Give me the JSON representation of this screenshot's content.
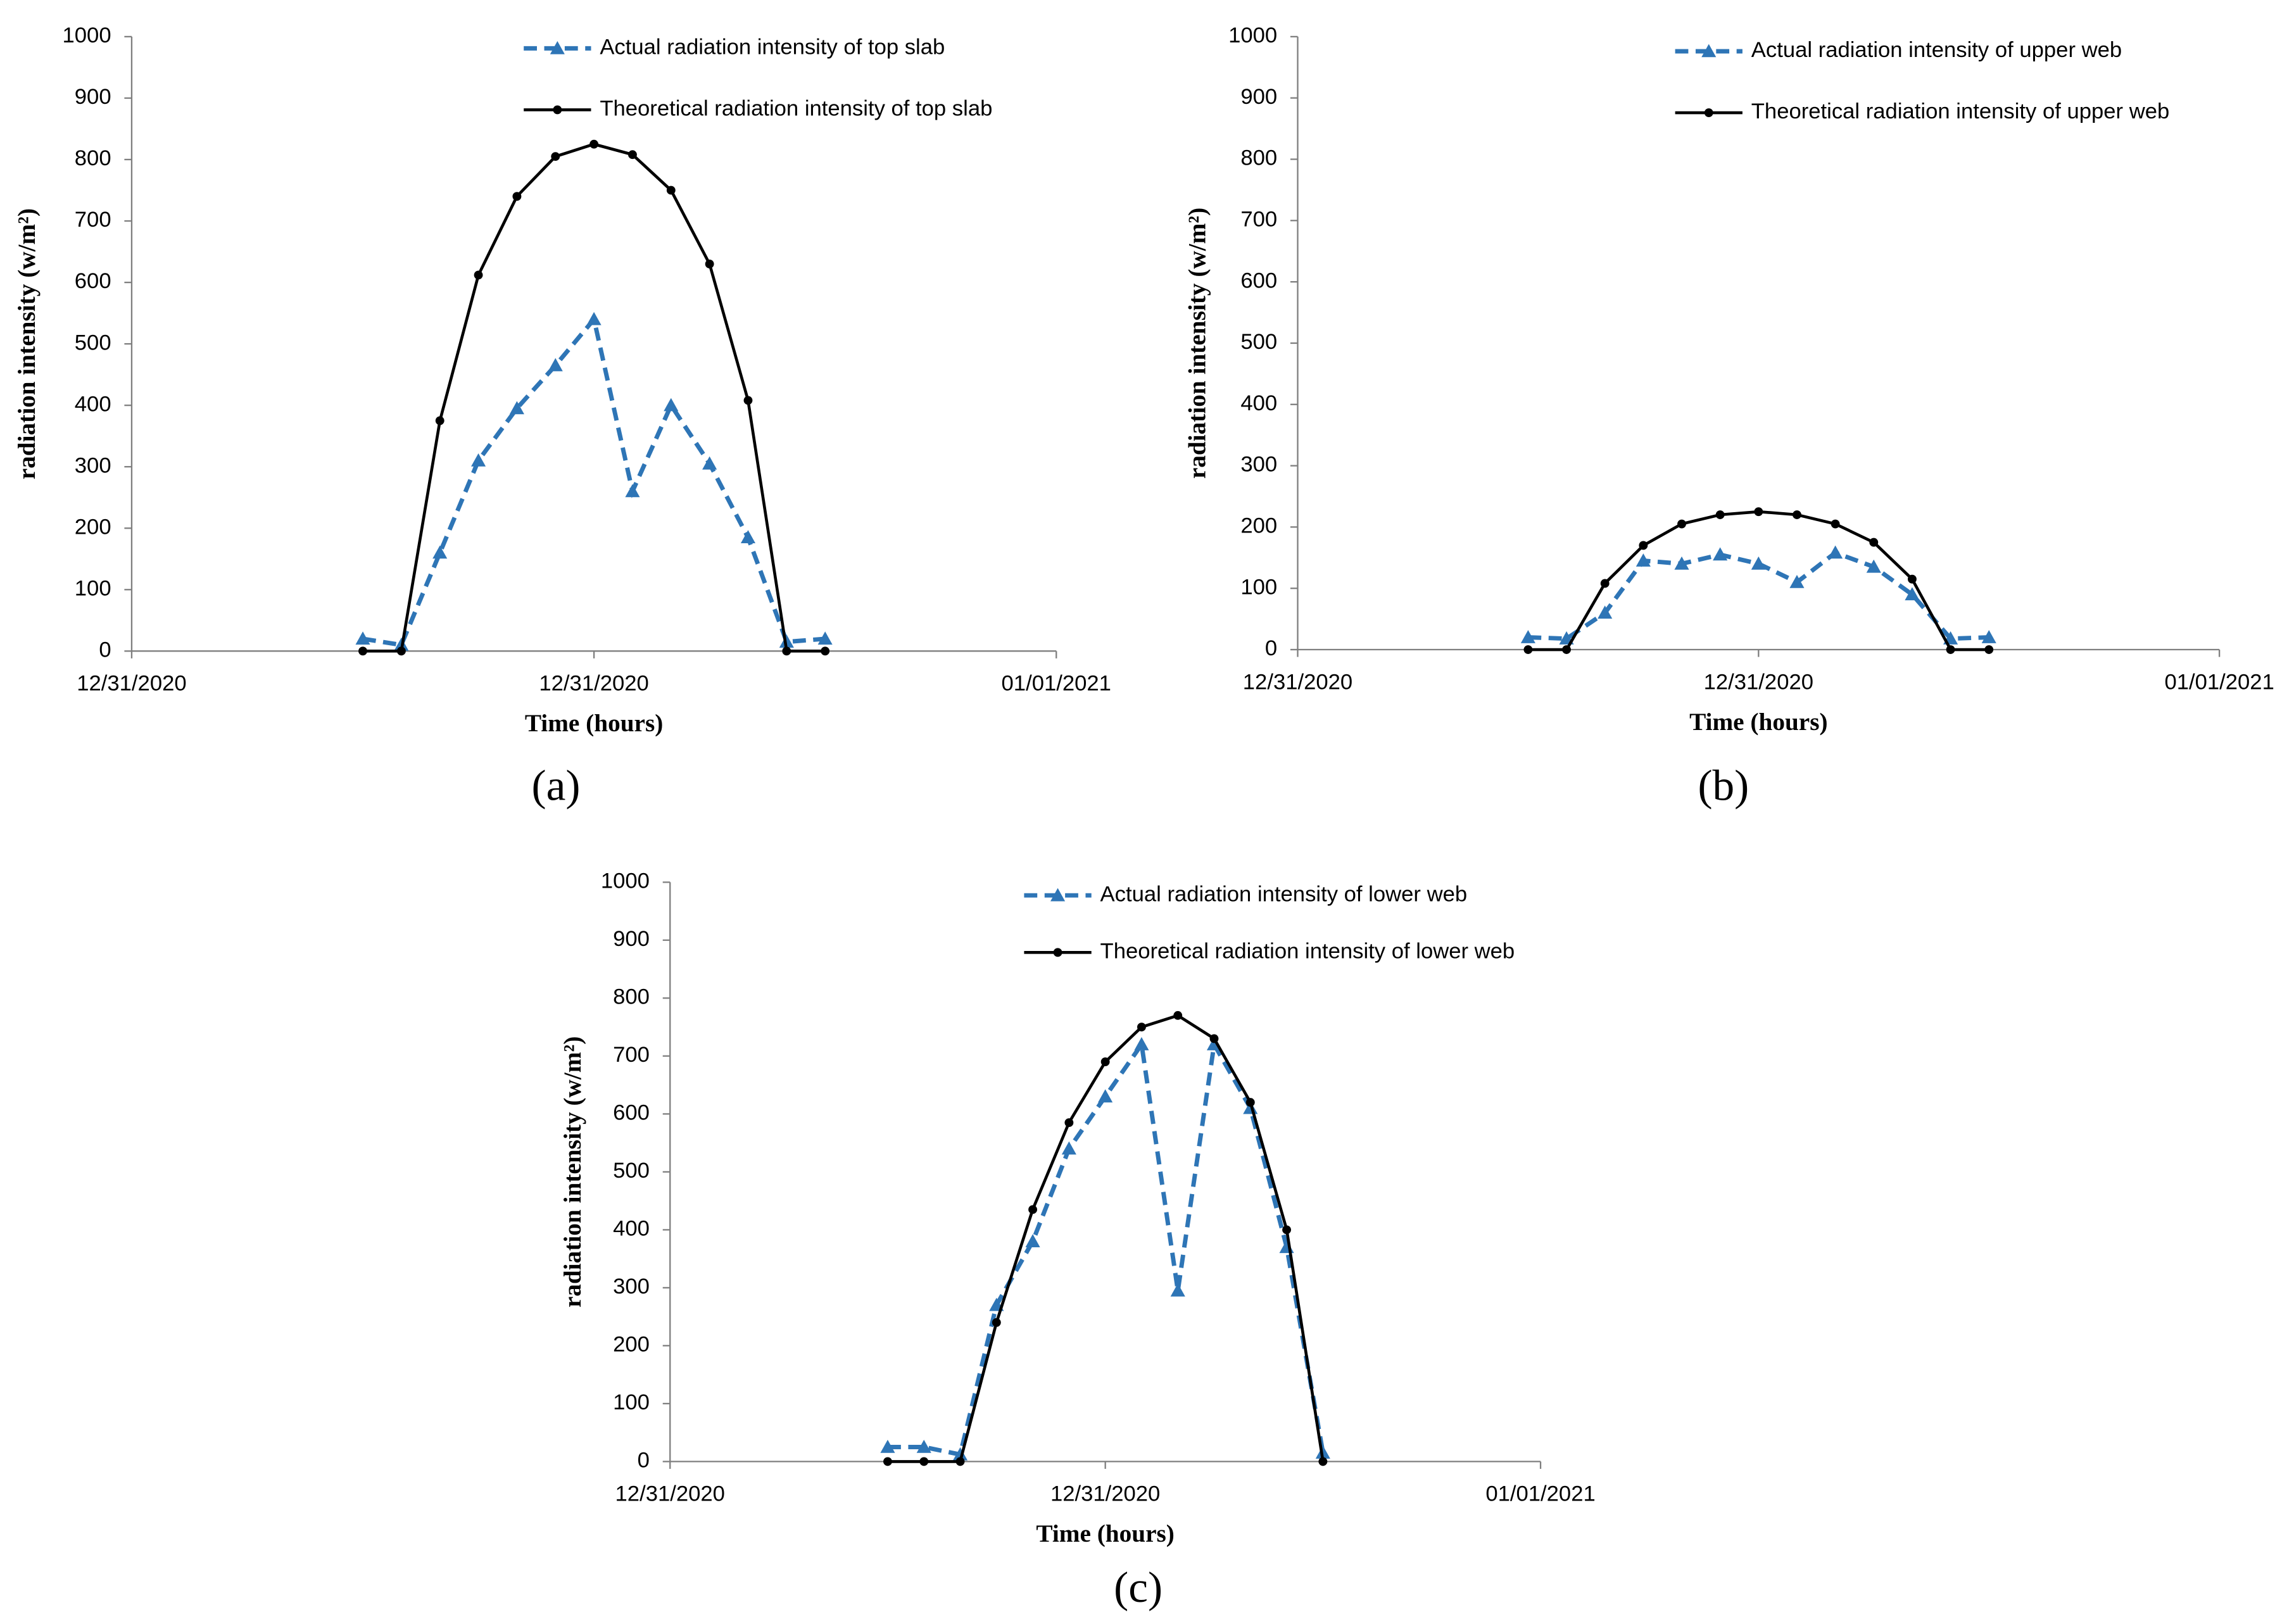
{
  "chart_data": [
    {
      "type": "line",
      "panel_label": "(a)",
      "xlabel": "Time (hours)",
      "ylabel": "radiation intensity (w/m²)",
      "x": [
        6,
        7,
        8,
        9,
        10,
        11,
        12,
        13,
        14,
        15,
        16,
        17,
        18
      ],
      "series": [
        {
          "name": "Actual radiation intensity of top slab",
          "color": "#2e75b6",
          "values": [
            20,
            10,
            160,
            310,
            395,
            465,
            540,
            260,
            400,
            305,
            185,
            15,
            20
          ]
        },
        {
          "name": "Theoretical radiation intensity of top slab",
          "color": "#000000",
          "values": [
            0,
            0,
            375,
            612,
            740,
            805,
            825,
            808,
            750,
            630,
            408,
            0,
            0
          ]
        }
      ],
      "xlim": [
        0,
        24
      ],
      "xticks": [
        {
          "value": 0,
          "label": "12/31/2020"
        },
        {
          "value": 12,
          "label": "12/31/2020"
        },
        {
          "value": 24,
          "label": "01/01/2021"
        }
      ],
      "ylim": [
        0,
        1000
      ],
      "yticks": [
        0,
        100,
        200,
        300,
        400,
        500,
        600,
        700,
        800,
        900,
        1000
      ]
    },
    {
      "type": "line",
      "panel_label": "(b)",
      "xlabel": "Time (hours)",
      "ylabel": "radiation intensity (w/m²)",
      "x": [
        6,
        7,
        8,
        9,
        10,
        11,
        12,
        13,
        14,
        15,
        16,
        17,
        18
      ],
      "series": [
        {
          "name": "Actual radiation intensity of upper web",
          "color": "#2e75b6",
          "values": [
            20,
            18,
            60,
            145,
            140,
            155,
            140,
            110,
            158,
            135,
            90,
            18,
            20
          ]
        },
        {
          "name": "Theoretical radiation intensity of upper web",
          "color": "#000000",
          "values": [
            0,
            0,
            108,
            170,
            205,
            220,
            225,
            220,
            205,
            175,
            115,
            0,
            0
          ]
        }
      ],
      "xlim": [
        0,
        24
      ],
      "xticks": [
        {
          "value": 0,
          "label": "12/31/2020"
        },
        {
          "value": 12,
          "label": "12/31/2020"
        },
        {
          "value": 24,
          "label": "01/01/2021"
        }
      ],
      "ylim": [
        0,
        1000
      ],
      "yticks": [
        0,
        100,
        200,
        300,
        400,
        500,
        600,
        700,
        800,
        900,
        1000
      ]
    },
    {
      "type": "line",
      "panel_label": "(c)",
      "xlabel": "Time (hours)",
      "ylabel": "radiation intensity (w/m²)",
      "x": [
        6,
        7,
        8,
        9,
        10,
        11,
        12,
        13,
        14,
        15,
        16,
        17,
        18
      ],
      "series": [
        {
          "name": "Actual radiation intensity of lower web",
          "color": "#2e75b6",
          "values": [
            25,
            25,
            12,
            270,
            380,
            540,
            630,
            720,
            295,
            720,
            610,
            370,
            15
          ]
        },
        {
          "name": "Theoretical radiation intensity of lower web",
          "color": "#000000",
          "values": [
            0,
            0,
            0,
            240,
            435,
            585,
            690,
            750,
            770,
            730,
            620,
            400,
            0
          ]
        }
      ],
      "xlim": [
        0,
        24
      ],
      "xticks": [
        {
          "value": 0,
          "label": "12/31/2020"
        },
        {
          "value": 12,
          "label": "12/31/2020"
        },
        {
          "value": 24,
          "label": "01/01/2021"
        }
      ],
      "ylim": [
        0,
        1000
      ],
      "yticks": [
        0,
        100,
        200,
        300,
        400,
        500,
        600,
        700,
        800,
        900,
        1000
      ]
    }
  ]
}
